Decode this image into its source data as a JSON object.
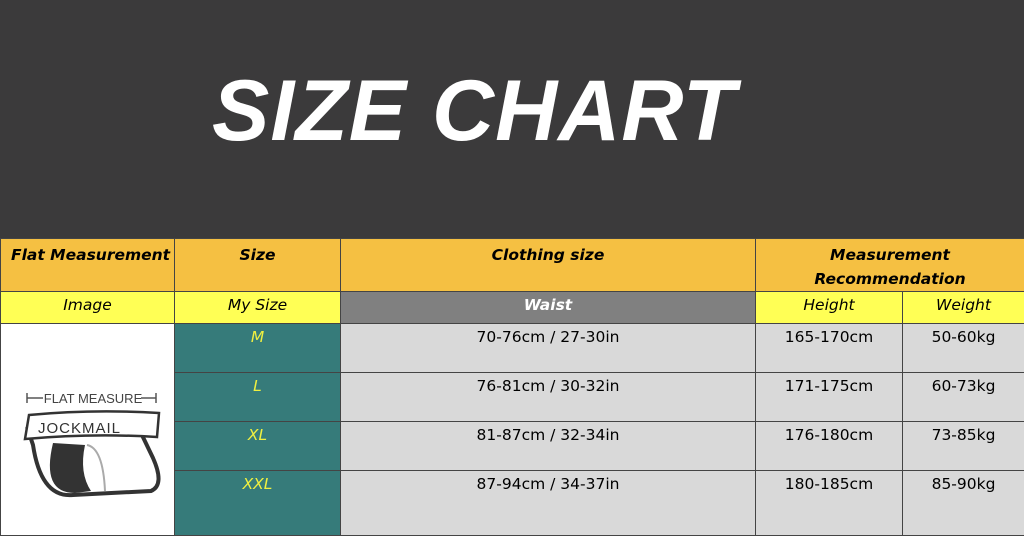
{
  "title": "SIZE CHART",
  "headers": {
    "flat": "Flat Measurement",
    "size": "Size",
    "clothing": "Clothing size",
    "recommendation": "Measurement Recommendation"
  },
  "subheaders": {
    "image": "Image",
    "my_size": "My Size",
    "waist": "Waist",
    "height": "Height",
    "weight": "Weight"
  },
  "image": {
    "caption": "FLAT MEASURE",
    "brand": "JOCKMAIL"
  },
  "rows": [
    {
      "size": "M",
      "waist": "70-76cm / 27-30in",
      "height": "165-170cm",
      "weight": "50-60kg"
    },
    {
      "size": "L",
      "waist": "76-81cm / 30-32in",
      "height": "171-175cm",
      "weight": "60-73kg"
    },
    {
      "size": "XL",
      "waist": "81-87cm / 32-34in",
      "height": "176-180cm",
      "weight": "73-85kg"
    },
    {
      "size": "XXL",
      "waist": "87-94cm / 34-37in",
      "height": "180-185cm",
      "weight": "85-90kg"
    }
  ],
  "colors": {
    "banner": "#3b3a3b",
    "header": "#f5c042",
    "subheader": "#ffff55",
    "size_cell": "#367b7a",
    "size_text": "#f0f040",
    "data_cell": "#d9d9d9"
  }
}
